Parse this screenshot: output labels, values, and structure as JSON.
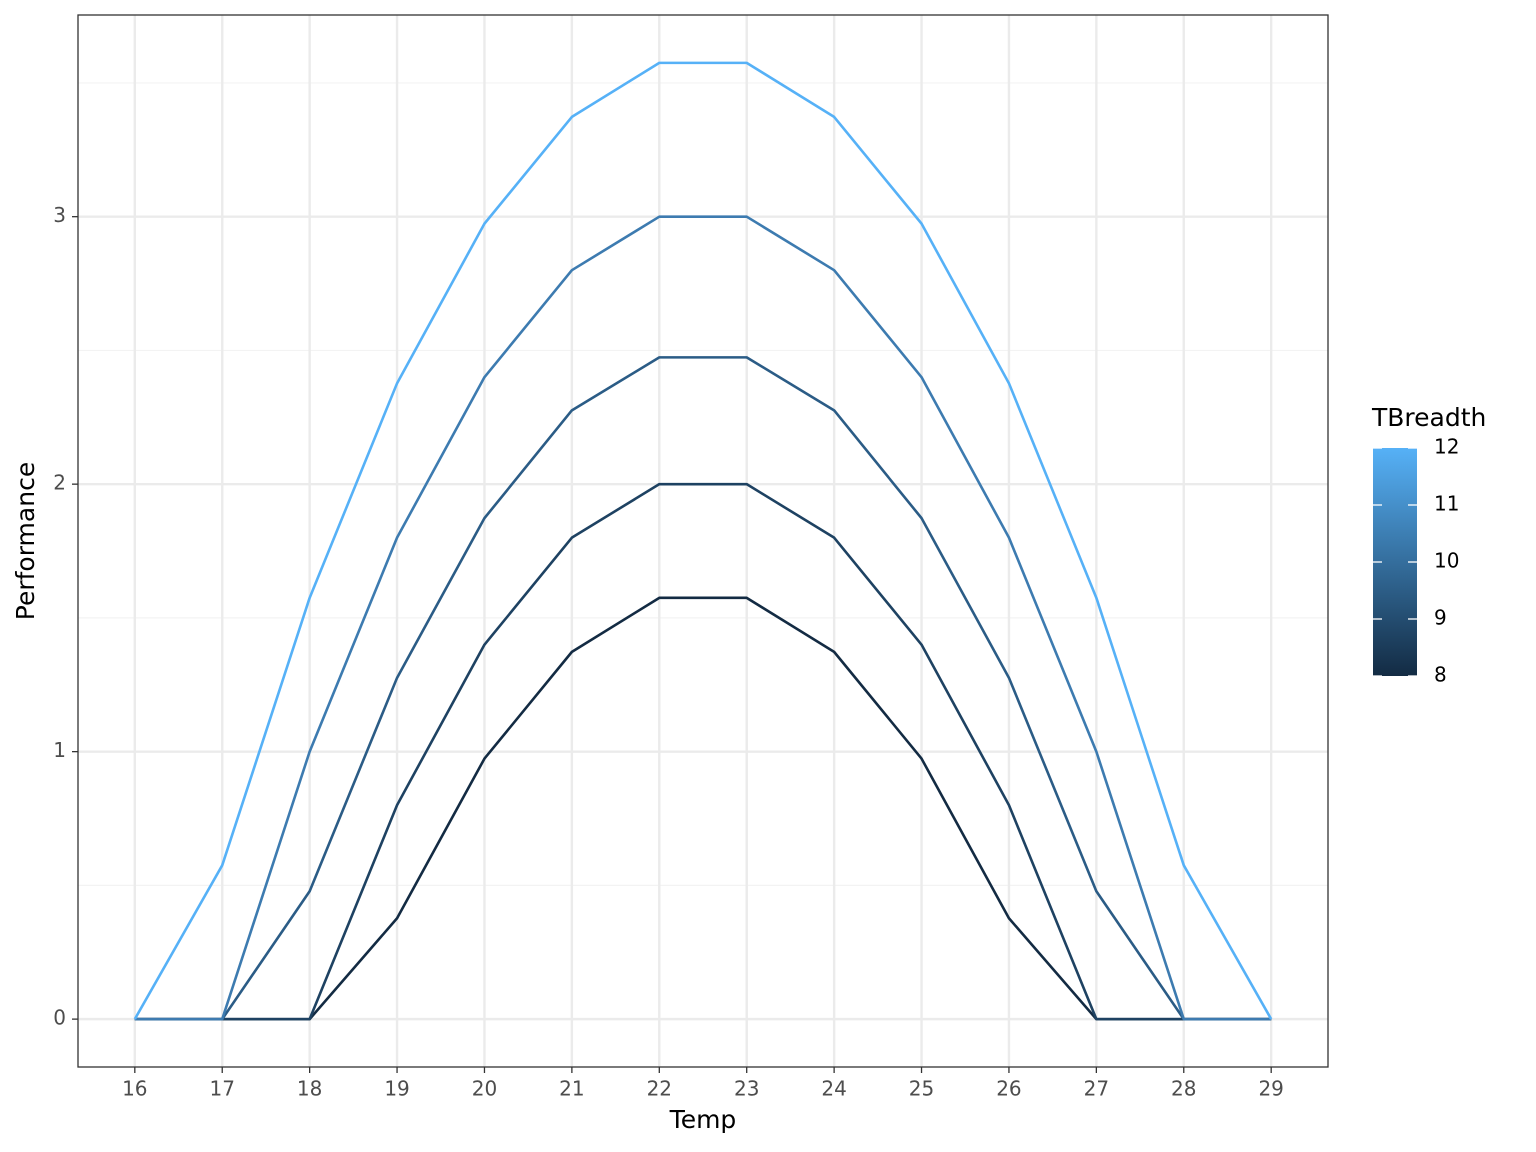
{
  "chart_data": {
    "type": "line",
    "x_label": "Temp",
    "y_label": "Performance",
    "x": [
      16,
      17,
      18,
      19,
      20,
      21,
      22,
      23,
      24,
      25,
      26,
      27,
      28,
      29
    ],
    "series": [
      {
        "color": "#132B43",
        "values": [
          0,
          0,
          0,
          0.377,
          0.974,
          1.373,
          1.575,
          1.575,
          1.373,
          0.974,
          0.377,
          0,
          0,
          0
        ]
      },
      {
        "color": "#1E4262",
        "values": [
          0,
          0,
          0,
          0.8,
          1.4,
          1.8,
          2,
          2,
          1.8,
          1.4,
          0.8,
          0,
          0,
          0
        ]
      },
      {
        "color": "#2B5C86",
        "values": [
          0,
          0,
          0.478,
          1.276,
          1.873,
          2.276,
          2.474,
          2.474,
          2.276,
          1.873,
          1.276,
          0.478,
          0,
          0
        ]
      },
      {
        "color": "#3D7BB0",
        "values": [
          0,
          0,
          1,
          1.8,
          2.4,
          2.8,
          3,
          3,
          2.8,
          2.4,
          1.8,
          1,
          0,
          0
        ]
      },
      {
        "color": "#56B1F7",
        "values": [
          0,
          0.575,
          1.575,
          2.377,
          2.974,
          3.373,
          3.575,
          3.575,
          3.373,
          2.974,
          2.377,
          1.575,
          0.575,
          0
        ]
      }
    ],
    "xlim": [
      15.35,
      29.65
    ],
    "xticks": [
      16,
      17,
      18,
      19,
      20,
      21,
      22,
      23,
      24,
      25,
      26,
      27,
      28,
      29
    ],
    "ylim": [
      -0.179,
      3.754
    ],
    "yticks": [
      0,
      1,
      2,
      3
    ],
    "yminor": [
      0.5,
      1.5,
      2.5,
      3.5
    ],
    "grid": true,
    "colorbar": {
      "title": "TBreadth",
      "lim": [
        8,
        12
      ],
      "ticks": [
        8,
        9,
        10,
        11,
        12
      ],
      "low": "#132B43",
      "high": "#56B1F7"
    }
  }
}
